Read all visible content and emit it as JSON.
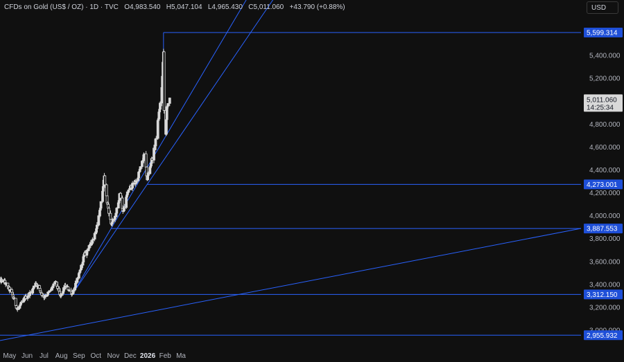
{
  "header": {
    "symbol": "CFDs on Gold (US$ / OZ) · 1D · TVC",
    "open": "O4,983.540",
    "high": "H5,047.104",
    "low": "L4,965.430",
    "close": "C5,011.060",
    "change": "+43.790 (+0.88%)",
    "currency": "USD"
  },
  "colors": {
    "background": "#101010",
    "candle": "#d9d9d9",
    "trendline": "#2962ff",
    "label_bg": "#1e4fd8",
    "axis_text": "#b2b5be"
  },
  "chart_data": {
    "type": "candlestick",
    "title": "CFDs on Gold (US$ / OZ) · 1D · TVC",
    "ylim": [
      2950,
      5700
    ],
    "y_ticks": [
      3000,
      3200,
      3400,
      3600,
      3800,
      4000,
      4200,
      4400,
      4600,
      4800,
      5000,
      5200,
      5400
    ],
    "y_tick_labels": [
      "3,000.000",
      "3,200.000",
      "3,400.000",
      "3,600.000",
      "3,800.000",
      "4,000.000",
      "4,200.000",
      "4,400.000",
      "4,600.000",
      "4,800.000",
      "5,000.000",
      "5,200.000",
      "5,400.000"
    ],
    "x_labels": [
      {
        "label": "May",
        "date": "2025-05-01"
      },
      {
        "label": "Jun",
        "date": "2025-06-01"
      },
      {
        "label": "Jul",
        "date": "2025-07-01"
      },
      {
        "label": "Aug",
        "date": "2025-08-01"
      },
      {
        "label": "Sep",
        "date": "2025-09-01"
      },
      {
        "label": "Oct",
        "date": "2025-10-01"
      },
      {
        "label": "Nov",
        "date": "2025-11-01"
      },
      {
        "label": "Dec",
        "date": "2025-12-01"
      },
      {
        "label": "2026",
        "date": "2026-01-01",
        "bold": true
      },
      {
        "label": "Feb",
        "date": "2026-02-01"
      },
      {
        "label": "Ma",
        "date": "2026-03-01"
      }
    ],
    "price_path": [
      {
        "date": "2025-04-21",
        "price": 3430
      },
      {
        "date": "2025-05-05",
        "price": 3320
      },
      {
        "date": "2025-05-15",
        "price": 3180
      },
      {
        "date": "2025-05-28",
        "price": 3280
      },
      {
        "date": "2025-06-10",
        "price": 3340
      },
      {
        "date": "2025-06-16",
        "price": 3420
      },
      {
        "date": "2025-06-30",
        "price": 3290
      },
      {
        "date": "2025-07-10",
        "price": 3330
      },
      {
        "date": "2025-07-22",
        "price": 3420
      },
      {
        "date": "2025-07-30",
        "price": 3290
      },
      {
        "date": "2025-08-08",
        "price": 3390
      },
      {
        "date": "2025-08-20",
        "price": 3320
      },
      {
        "date": "2025-09-01",
        "price": 3480
      },
      {
        "date": "2025-09-10",
        "price": 3650
      },
      {
        "date": "2025-09-22",
        "price": 3750
      },
      {
        "date": "2025-10-01",
        "price": 3870
      },
      {
        "date": "2025-10-08",
        "price": 4040
      },
      {
        "date": "2025-10-16",
        "price": 4330
      },
      {
        "date": "2025-10-21",
        "price": 4120
      },
      {
        "date": "2025-10-28",
        "price": 3930
      },
      {
        "date": "2025-11-04",
        "price": 3980
      },
      {
        "date": "2025-11-13",
        "price": 4200
      },
      {
        "date": "2025-11-18",
        "price": 4030
      },
      {
        "date": "2025-11-28",
        "price": 4230
      },
      {
        "date": "2025-12-12",
        "price": 4300
      },
      {
        "date": "2025-12-26",
        "price": 4530
      },
      {
        "date": "2025-12-31",
        "price": 4320
      },
      {
        "date": "2026-01-14",
        "price": 4610
      },
      {
        "date": "2026-01-26",
        "price": 5100
      },
      {
        "date": "2026-01-29",
        "price": 5450
      },
      {
        "date": "2026-01-30",
        "price": 4900
      },
      {
        "date": "2026-02-02",
        "price": 4700
      },
      {
        "date": "2026-02-04",
        "price": 4970
      },
      {
        "date": "2026-02-06",
        "price": 4960
      },
      {
        "date": "2026-02-09",
        "price": 5011
      }
    ],
    "horizontal_levels": [
      {
        "price": 5599.314,
        "label": "5,599.314",
        "from_date": "2026-01-29"
      },
      {
        "price": 4273.001,
        "label": "4,273.001",
        "from_date": "2025-12-31"
      },
      {
        "price": 3887.553,
        "label": "3,887.553",
        "from_date": "2025-10-28"
      },
      {
        "price": 3312.15,
        "label": "3,312.150",
        "from_date": ""
      },
      {
        "price": 2955.932,
        "label": "2,955.932",
        "from_date": ""
      }
    ],
    "trendlines": [
      {
        "from": {
          "date": "2025-08-20",
          "price": 3312
        },
        "to": {
          "date": "2025-12-31",
          "price": 4273
        },
        "extend_right": true
      },
      {
        "from": {
          "date": "2025-04-21",
          "price": 2955
        },
        "to": {
          "date": "2025-08-20",
          "price": 3312
        },
        "extend_right": false
      },
      {
        "from": {
          "date": "2025-08-20",
          "price": 3312
        },
        "to": {
          "date": "2025-10-28",
          "price": 3887
        },
        "extend_right": true,
        "through_start_to_end": false
      }
    ],
    "last_price": {
      "price": 5011.06,
      "label": "5,011.060",
      "countdown": "14:25:34"
    },
    "grid": false,
    "legend": "none"
  }
}
